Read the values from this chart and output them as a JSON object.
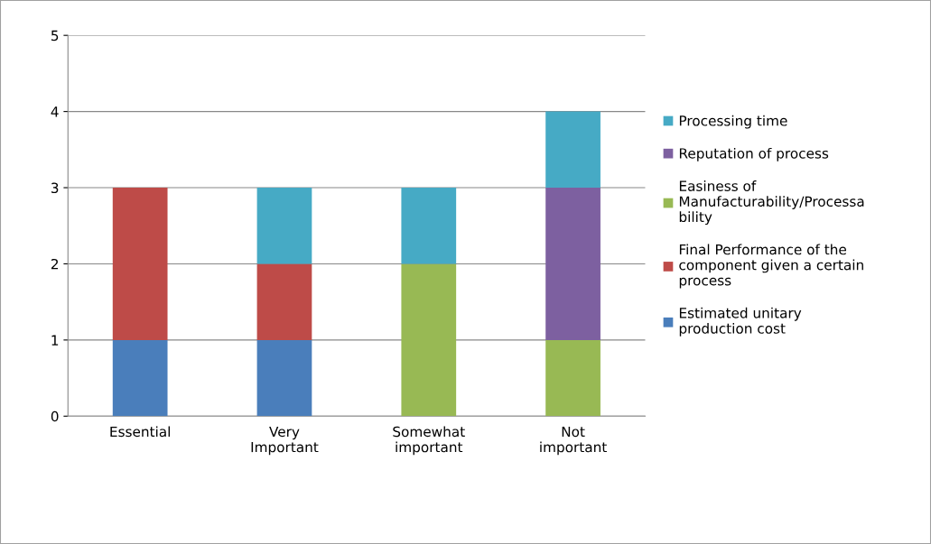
{
  "chart_data": {
    "type": "bar",
    "stacked": true,
    "categories": [
      "Essential",
      "Very\nImportant",
      "Somewhat\nimportant",
      "Not\nimportant"
    ],
    "series": [
      {
        "name": "Estimated unitary\nproduction cost",
        "color": "#4a7ebb",
        "values": [
          1,
          1,
          0,
          0
        ]
      },
      {
        "name": "Final Performance of the\ncomponent given a certain\nprocess",
        "color": "#be4b48",
        "values": [
          2,
          1,
          0,
          0
        ]
      },
      {
        "name": "Easiness of\nManufacturability/Processa\nbility",
        "color": "#98b954",
        "values": [
          0,
          0,
          2,
          1
        ]
      },
      {
        "name": "Reputation of process",
        "color": "#7d60a0",
        "values": [
          0,
          0,
          0,
          2
        ]
      },
      {
        "name": "Processing time",
        "color": "#46aac5",
        "values": [
          0,
          1,
          1,
          1
        ]
      }
    ],
    "ylim": [
      0,
      5
    ],
    "yticks": [
      0,
      1,
      2,
      3,
      4,
      5
    ],
    "grid": "y",
    "legend": "right"
  }
}
